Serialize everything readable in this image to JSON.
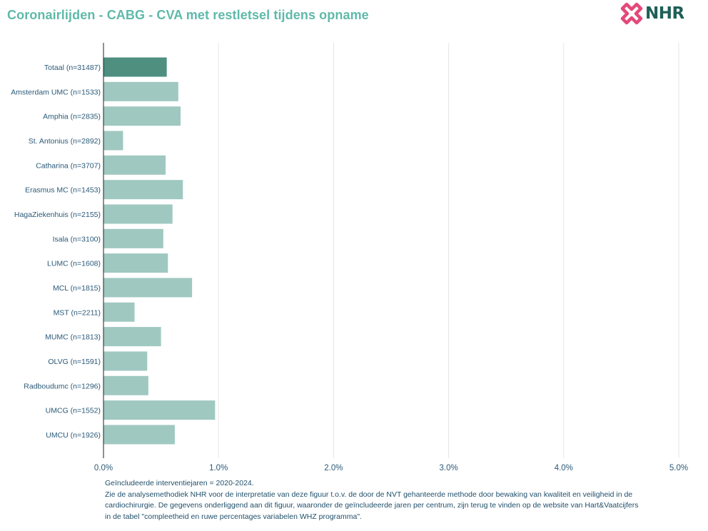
{
  "title": "Coronairlijden - CABG - CVA met restletsel tijdens opname",
  "logo_text": "NHR",
  "colors": {
    "title": "#5fb9aa",
    "bar_total": "#4e8f80",
    "bar_center": "#9fc8c0",
    "grid": "#e6e6e6",
    "axis": "#222222",
    "tick_text": "#2b5a78"
  },
  "chart_data": {
    "type": "bar",
    "orientation": "horizontal",
    "title": "Coronairlijden - CABG - CVA met restletsel tijdens opname",
    "categories": [
      "Totaal (n=31487)",
      "Amsterdam UMC (n=1533)",
      "Amphia (n=2835)",
      "St. Antonius (n=2892)",
      "Catharina (n=3707)",
      "Erasmus MC (n=1453)",
      "HagaZiekenhuis (n=2155)",
      "Isala (n=3100)",
      "LUMC (n=1608)",
      "MCL (n=1815)",
      "MST (n=2211)",
      "MUMC (n=1813)",
      "OLVG (n=1591)",
      "Radboudumc (n=1296)",
      "UMCG (n=1552)",
      "UMCU (n=1926)"
    ],
    "values": [
      0.55,
      0.65,
      0.67,
      0.17,
      0.54,
      0.69,
      0.6,
      0.52,
      0.56,
      0.77,
      0.27,
      0.5,
      0.38,
      0.39,
      0.97,
      0.62
    ],
    "unit": "%",
    "xlim": [
      0,
      5
    ],
    "xticks": [
      "0.0%",
      "1.0%",
      "2.0%",
      "3.0%",
      "4.0%",
      "5.0%"
    ],
    "grid": true,
    "highlight_first": true
  },
  "notes": [
    "Geïncludeerde interventiejaren = 2020-2024.",
    "Zie de analysemethodiek NHR voor de interpretatie van deze figuur t.o.v. de door de NVT gehanteerde methode door bewaking van kwaliteit en veiligheid in de",
    "cardiochirurgie. De gegevens onderliggend aan dit figuur, waaronder de geïncludeerde jaren per centrum, zijn terug te vinden op de website van Hart&Vaatcijfers",
    "in de tabel \"compleetheid en ruwe percentages variabelen WHZ programma\"."
  ]
}
